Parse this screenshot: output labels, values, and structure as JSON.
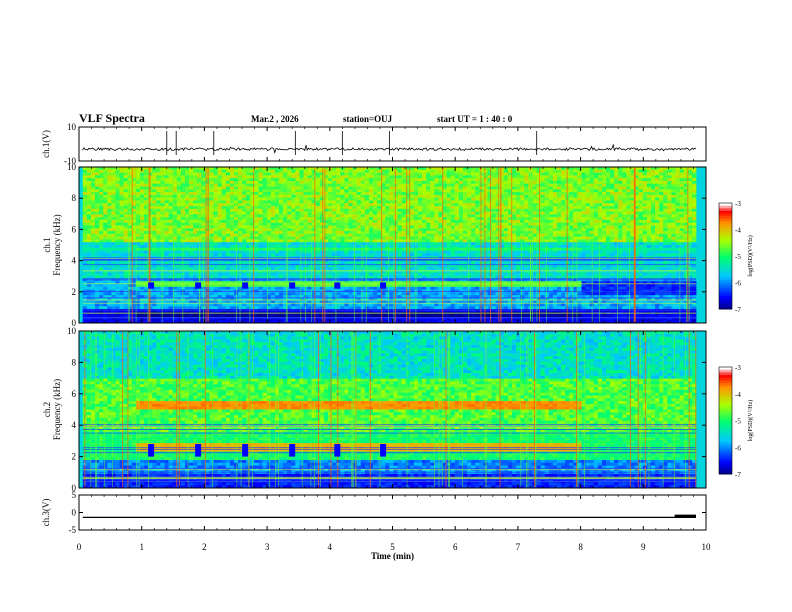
{
  "header": {
    "title": "VLF Spectra",
    "date": "Mar.2 , 2026",
    "station": "station=OUJ",
    "start_ut": "start UT = 1 : 40 : 0"
  },
  "chart_data": [
    {
      "type": "line",
      "name": "ch1-waveform",
      "ylabel": "ch.1(V)",
      "ylim": [
        -10,
        10
      ],
      "y_ticks": [
        "10",
        "-10"
      ],
      "baseline": -3
    },
    {
      "type": "heatmap",
      "name": "ch1-spectrogram",
      "ylabel": "ch.1\nFrequency (kHz)",
      "ylabel_lines": [
        "ch.1",
        "Frequency (kHz)"
      ],
      "ylim": [
        0,
        10
      ],
      "y_ticks": [
        "0",
        "2",
        "4",
        "6",
        "8",
        "10"
      ],
      "bands_khz": [
        {
          "from": 0.3,
          "to": 0.7,
          "level": -7
        },
        {
          "from": 2.3,
          "to": 2.6,
          "level": -4.8
        },
        {
          "from": 4.7,
          "to": 4.9,
          "level": -5.0
        }
      ],
      "colorbar": {
        "label": "log(PSD)(V²/Hz)",
        "range": [
          -7,
          -3
        ],
        "ticks": [
          "-3",
          "-4",
          "-5",
          "-6",
          "-7"
        ]
      }
    },
    {
      "type": "heatmap",
      "name": "ch2-spectrogram",
      "ylabel": "ch.2\nFrequency (kHz)",
      "ylabel_lines": [
        "ch.2",
        "Frequency (kHz)"
      ],
      "ylim": [
        0,
        10
      ],
      "y_ticks": [
        "0",
        "2",
        "4",
        "6",
        "8",
        "10"
      ],
      "bands_khz": [
        {
          "from": 2.4,
          "to": 2.8,
          "level": -4.0
        },
        {
          "from": 5.0,
          "to": 5.5,
          "level": -3.8
        }
      ],
      "colorbar": {
        "label": "log(PSD)(V²/Hz)",
        "range": [
          -7,
          -3
        ],
        "ticks": [
          "-3",
          "-4",
          "-5",
          "-6",
          "-7"
        ]
      }
    },
    {
      "type": "line",
      "name": "ch3-waveform",
      "ylabel": "ch.3(V)",
      "ylim": [
        -5,
        5
      ],
      "y_ticks": [
        "5",
        "0",
        "-5"
      ],
      "baseline": -1.4
    }
  ],
  "x_axis": {
    "label": "Time (min)",
    "range": [
      0,
      10
    ],
    "ticks": [
      "0",
      "1",
      "2",
      "3",
      "4",
      "5",
      "6",
      "7",
      "8",
      "9",
      "10"
    ]
  }
}
